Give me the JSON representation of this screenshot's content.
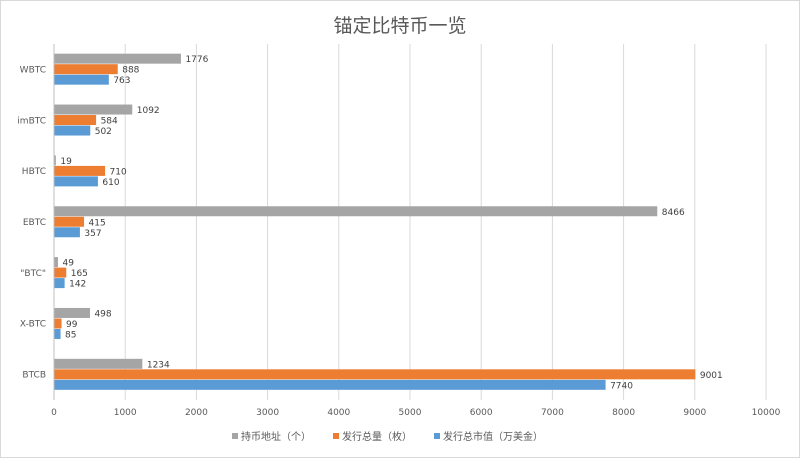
{
  "chart_data": {
    "type": "bar",
    "orientation": "horizontal",
    "title": "锚定比特币一览",
    "categories": [
      "WBTC",
      "imBTC",
      "HBTC",
      "EBTC",
      "\"BTC\"",
      "X-BTC",
      "BTCB"
    ],
    "series": [
      {
        "name": "持币地址（个）",
        "color": "#a5a5a5",
        "values": [
          1776,
          1092,
          19,
          8466,
          49,
          498,
          1234
        ]
      },
      {
        "name": "发行总量（枚）",
        "color": "#ed7d31",
        "values": [
          888,
          584,
          710,
          415,
          165,
          99,
          9001
        ]
      },
      {
        "name": "发行总市值（万美金）",
        "color": "#5b9bd5",
        "values": [
          763,
          502,
          610,
          357,
          142,
          85,
          7740
        ]
      }
    ],
    "xlim": [
      0,
      10000
    ],
    "xticks": [
      0,
      1000,
      2000,
      3000,
      4000,
      5000,
      6000,
      7000,
      8000,
      9000,
      10000
    ],
    "grid": true,
    "data_labels": true,
    "legend": "bottom"
  }
}
